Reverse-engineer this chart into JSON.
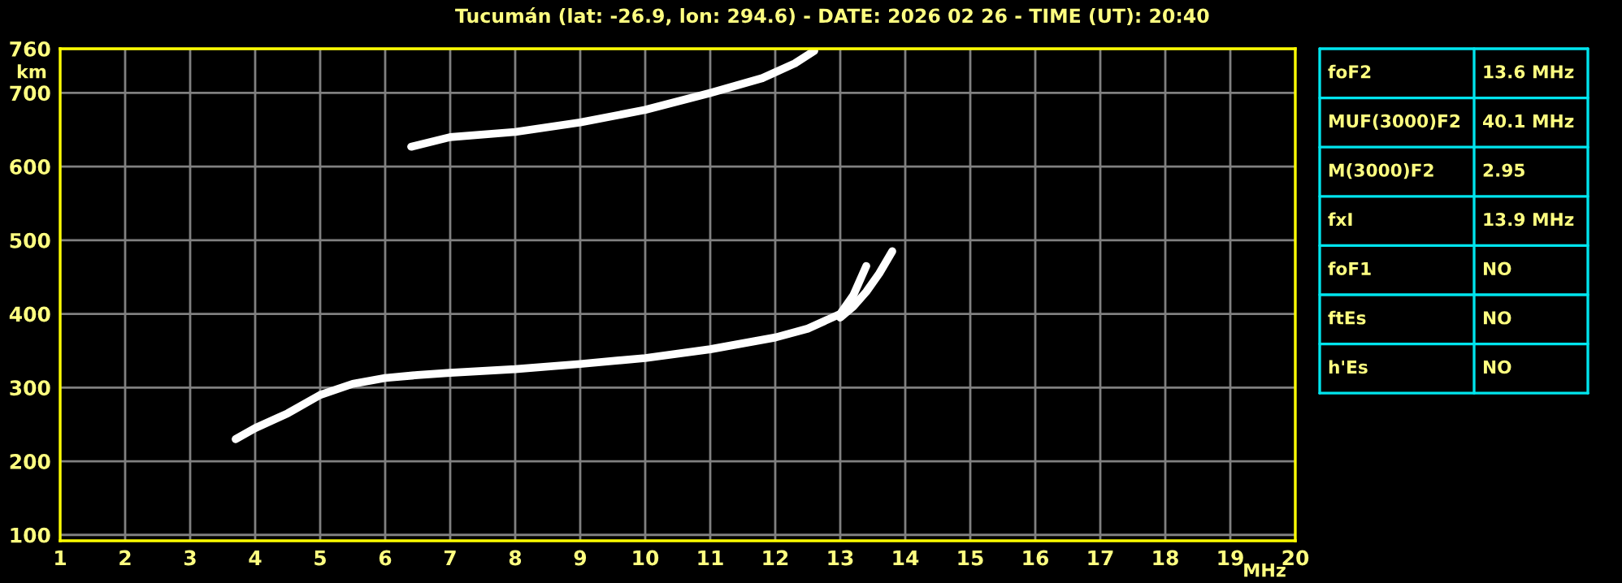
{
  "chart_data": {
    "type": "line",
    "title": "Tucumán (lat: -26.9, lon: 294.6) - DATE: 2026 02 26 - TIME (UT): 20:40",
    "xlabel": "MHz",
    "ylabel": "km",
    "series": [
      {
        "color": "#ffffff",
        "x": [
          3.7,
          4.0,
          4.5,
          5.0,
          5.5,
          6.0,
          6.5,
          7.0,
          8.0,
          9.0,
          10.0,
          11.0,
          12.0,
          12.5,
          13.0,
          13.2,
          13.4
        ],
        "values": [
          230,
          245,
          265,
          290,
          305,
          313,
          317,
          320,
          325,
          332,
          340,
          352,
          368,
          380,
          400,
          425,
          465
        ]
      },
      {
        "color": "#ffffff",
        "x": [
          13.0,
          13.2,
          13.4,
          13.6,
          13.8
        ],
        "values": [
          395,
          410,
          430,
          455,
          485
        ]
      },
      {
        "color": "#ffffff",
        "x": [
          6.4,
          7.0,
          8.0,
          9.0,
          10.0,
          11.0,
          11.8,
          12.3,
          12.6
        ],
        "values": [
          627,
          640,
          647,
          660,
          677,
          700,
          720,
          740,
          757
        ]
      }
    ],
    "xlim": [
      1,
      20
    ],
    "xticks": [
      1,
      2,
      3,
      4,
      5,
      6,
      7,
      8,
      9,
      10,
      11,
      12,
      13,
      14,
      15,
      16,
      17,
      18,
      19,
      20
    ],
    "ylim": [
      92,
      760
    ],
    "yticks": [
      100,
      200,
      300,
      400,
      500,
      600,
      700,
      760
    ],
    "grid": true,
    "annotations": [
      "foF2",
      "13.6 MHz",
      "MUF(3000)F2",
      "40.1 MHz",
      "M(3000)F2",
      "2.95",
      "fxI",
      "13.9 MHz",
      "foF1",
      "NO",
      "ftEs",
      "NO",
      "h'Es",
      "NO"
    ]
  }
}
